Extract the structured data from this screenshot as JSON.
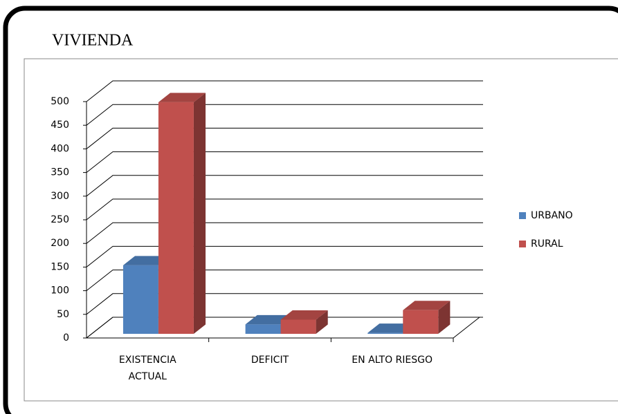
{
  "chart_data": {
    "type": "bar3d",
    "title": "VIVIENDA",
    "categories": [
      "EXISTENCIA ACTUAL",
      "DEFICIT",
      "EN ALTO RIESGO"
    ],
    "series": [
      {
        "name": "URBANO",
        "color": "#4f81bd",
        "values": [
          145,
          20,
          2
        ]
      },
      {
        "name": "RURAL",
        "color": "#c0504d",
        "values": [
          490,
          30,
          50
        ]
      }
    ],
    "ylim": [
      0,
      500
    ],
    "yticks": [
      0,
      50,
      100,
      150,
      200,
      250,
      300,
      350,
      400,
      450,
      500
    ],
    "grid": true,
    "legend": "right"
  }
}
